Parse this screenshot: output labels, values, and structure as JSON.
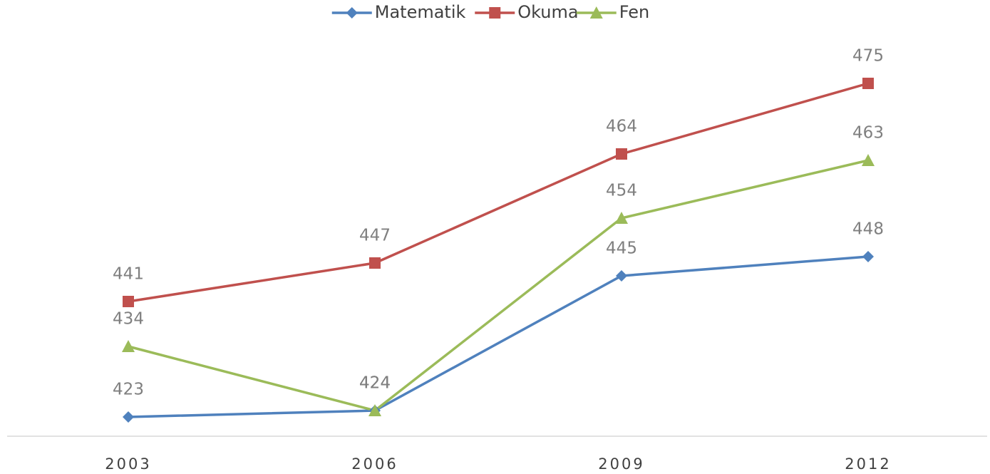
{
  "chart_data": {
    "type": "line",
    "categories": [
      "2003",
      "2006",
      "2009",
      "2012"
    ],
    "series": [
      {
        "name": "Matematik",
        "color": "#4f81bd",
        "marker": "diamond",
        "values": [
          423,
          424,
          445,
          448
        ]
      },
      {
        "name": "Okuma",
        "color": "#c0504d",
        "marker": "square",
        "values": [
          441,
          447,
          464,
          475
        ]
      },
      {
        "name": "Fen",
        "color": "#9bbb59",
        "marker": "triangle",
        "values": [
          434,
          424,
          454,
          463
        ]
      }
    ],
    "legend": "top",
    "grid": false
  }
}
